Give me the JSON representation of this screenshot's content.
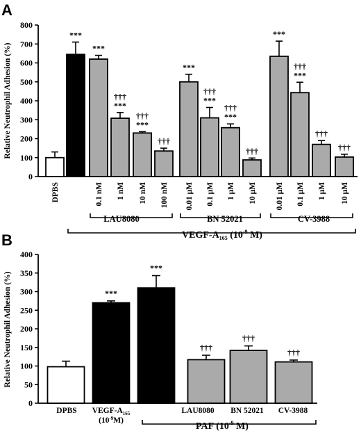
{
  "chart_data": [
    {
      "panel": "A",
      "type": "bar",
      "ylabel": "Relative Neutrophil Adhesion (%)",
      "ylim": [
        0,
        800
      ],
      "yticks": [
        0,
        100,
        200,
        300,
        400,
        500,
        600,
        700,
        800
      ],
      "grid": false,
      "categories": [
        "DPBS",
        "",
        "0.1 nM",
        "1 nM",
        "10 nM",
        "100 nM",
        "0.01 μM",
        "0.1 μM",
        "1 μM",
        "10 μM",
        "0.01 μM",
        "0.1 μM",
        "1 μM",
        "10 μM"
      ],
      "values": [
        100,
        645,
        620,
        308,
        230,
        135,
        500,
        310,
        258,
        88,
        635,
        443,
        170,
        103
      ],
      "errors": [
        30,
        65,
        20,
        30,
        7,
        15,
        40,
        55,
        20,
        10,
        80,
        55,
        20,
        15
      ],
      "fills": [
        "#ffffff",
        "#000000",
        "#aaaaaa",
        "#aaaaaa",
        "#aaaaaa",
        "#aaaaaa",
        "#aaaaaa",
        "#aaaaaa",
        "#aaaaaa",
        "#aaaaaa",
        "#aaaaaa",
        "#aaaaaa",
        "#aaaaaa",
        "#aaaaaa"
      ],
      "annotations": [
        [
          "",
          ""
        ],
        [
          "",
          "***"
        ],
        [
          "",
          "***"
        ],
        [
          "†††",
          "***"
        ],
        [
          "†††",
          "***"
        ],
        [
          "",
          "†††"
        ],
        [
          "",
          "***"
        ],
        [
          "†††",
          "***"
        ],
        [
          "†††",
          "***"
        ],
        [
          "",
          "†††"
        ],
        [
          "",
          "***"
        ],
        [
          "†††",
          "***"
        ],
        [
          "",
          "†††"
        ],
        [
          "",
          "†††"
        ]
      ],
      "inhibitor_groups": [
        {
          "label": "LAU8080",
          "from": 2,
          "to": 5
        },
        {
          "label": "BN 52021",
          "from": 6,
          "to": 9
        },
        {
          "label": "CV-3988",
          "from": 10,
          "to": 13
        }
      ],
      "stimulus_group": {
        "label": "VEGF-A165 (10-9 M)",
        "from": 1,
        "to": 13
      }
    },
    {
      "panel": "B",
      "type": "bar",
      "ylabel": "Relative Neutrophil Adhesion (%)",
      "ylim": [
        0,
        400
      ],
      "yticks": [
        0,
        50,
        100,
        150,
        200,
        250,
        300,
        350,
        400
      ],
      "grid": false,
      "categories": [
        "DPBS",
        "VEGF-A165 (10-9M)",
        "",
        "LAU8080",
        "BN 52021",
        "CV-3988"
      ],
      "values": [
        98,
        270,
        310,
        117,
        142,
        111
      ],
      "errors": [
        15,
        5,
        33,
        12,
        12,
        5
      ],
      "fills": [
        "#ffffff",
        "#000000",
        "#000000",
        "#aaaaaa",
        "#aaaaaa",
        "#aaaaaa"
      ],
      "annotations": [
        "",
        "***",
        "***",
        "†††",
        "†††",
        "†††"
      ],
      "stimulus_group": {
        "label": "PAF (10-9 M)",
        "from": 2,
        "to": 5
      }
    }
  ],
  "labels": {
    "panel_a": "A",
    "panel_b": "B",
    "ylabel": "Relative Neutrophil Adhesion (%)",
    "dpbs": "DPBS",
    "lau": "LAU8080",
    "bn": "BN 52021",
    "cv": "CV-3988",
    "vegf_a": "VEGF-A",
    "vegf_sub": "165",
    "vegf_conc": "(10",
    "vegf_exp": "-9",
    "vegf_close": " M)",
    "vegf_b": "VEGF-A",
    "vegf_b_sub": "165",
    "vegf_b_conc": "(10",
    "vegf_b_exp": "-9",
    "vegf_b_close": "M)",
    "paf": "PAF (10",
    "paf_exp": "-9",
    "paf_close": " M)"
  }
}
